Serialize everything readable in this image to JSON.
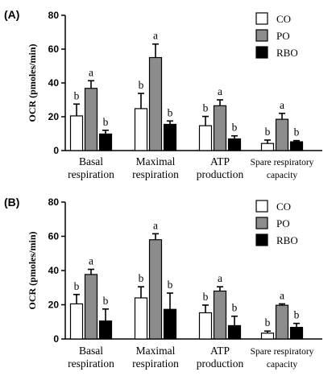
{
  "chart_data": [
    {
      "type": "bar",
      "panel_label": "(A)",
      "ylabel": "OCR (pmoles/min)",
      "ylim": [
        0,
        80
      ],
      "yticks": [
        "0",
        "20",
        "40",
        "60",
        "80"
      ],
      "categories": [
        [
          "Basal",
          "respiration"
        ],
        [
          "Maximal",
          "respiration"
        ],
        [
          "ATP",
          "production"
        ],
        [
          "Spare respiratory",
          "capacity"
        ]
      ],
      "series": [
        {
          "name": "CO",
          "values": [
            20.5,
            24.8,
            14.7,
            4.2
          ],
          "errors": [
            7.0,
            9.0,
            5.5,
            2.0
          ],
          "labels": [
            "b",
            "b",
            "b",
            "b"
          ],
          "color": "#ffffff"
        },
        {
          "name": "PO",
          "values": [
            36.8,
            55.0,
            26.5,
            18.5
          ],
          "errors": [
            4.5,
            8.0,
            3.5,
            3.5
          ],
          "labels": [
            "a",
            "a",
            "a",
            "a"
          ],
          "color": "#8c8c8c"
        },
        {
          "name": "RBO",
          "values": [
            9.8,
            15.5,
            6.9,
            5.2
          ],
          "errors": [
            2.2,
            2.0,
            1.8,
            0.7
          ],
          "labels": [
            "b",
            "b",
            "b",
            "b"
          ],
          "color": "#000000"
        }
      ],
      "legend_position": "top-right"
    },
    {
      "type": "bar",
      "panel_label": "(B)",
      "ylabel": "OCR (pmoles/min)",
      "ylim": [
        0,
        80
      ],
      "yticks": [
        "0",
        "20",
        "40",
        "60",
        "80"
      ],
      "categories": [
        [
          "Basal",
          "respiration"
        ],
        [
          "Maximal",
          "respiration"
        ],
        [
          "ATP",
          "production"
        ],
        [
          "Spare respiratory",
          "capacity"
        ]
      ],
      "series": [
        {
          "name": "CO",
          "values": [
            20.5,
            24.0,
            15.3,
            3.4
          ],
          "errors": [
            5.5,
            6.5,
            4.5,
            1.2
          ],
          "labels": [
            "b",
            "b",
            "b",
            "b"
          ],
          "color": "#ffffff"
        },
        {
          "name": "PO",
          "values": [
            37.7,
            58.0,
            28.0,
            19.7
          ],
          "errors": [
            3.0,
            3.5,
            2.5,
            0.8
          ],
          "labels": [
            "a",
            "a",
            "a",
            "a"
          ],
          "color": "#8c8c8c"
        },
        {
          "name": "RBO",
          "values": [
            10.5,
            17.3,
            7.8,
            6.8
          ],
          "errors": [
            7.0,
            9.5,
            5.5,
            2.3
          ],
          "labels": [
            "b",
            "b",
            "b",
            "b"
          ],
          "color": "#000000"
        }
      ],
      "legend_position": "top-right"
    }
  ]
}
